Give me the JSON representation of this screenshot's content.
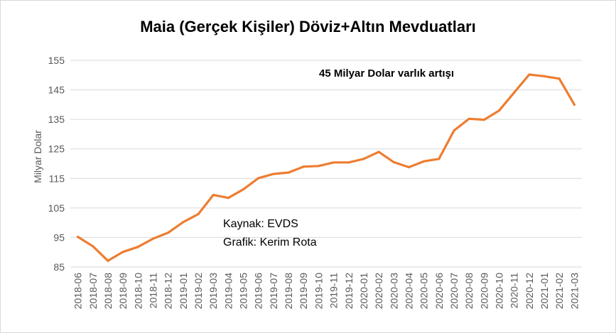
{
  "chart_data": {
    "type": "line",
    "title": "Maia (Gerçek Kişiler) Döviz+Altın Mevduatları",
    "ylabel": "Milyar Dolar",
    "xlabel": "",
    "ylim": [
      85,
      155
    ],
    "yticks": [
      85,
      95,
      105,
      115,
      125,
      135,
      145,
      155
    ],
    "grid": true,
    "legend": "none",
    "categories": [
      "2018-06",
      "2018-07",
      "2018-08",
      "2018-09",
      "2018-10",
      "2018-11",
      "2018-12",
      "2019-01",
      "2019-02",
      "2019-03",
      "2019-04",
      "2019-05",
      "2019-06",
      "2019-07",
      "2019-08",
      "2019-09",
      "2019-10",
      "2019-11",
      "2019-12",
      "2020-01",
      "2020-02",
      "2020-03",
      "2020-04",
      "2020-05",
      "2020-06",
      "2020-07",
      "2020-08",
      "2020-09",
      "2020-10",
      "2020-11",
      "2020-12",
      "2021-01",
      "2021-02",
      "2021-03"
    ],
    "series": [
      {
        "color": "#ed7d31",
        "values": [
          95.2,
          92.0,
          87.1,
          90.1,
          91.8,
          94.6,
          96.6,
          100.2,
          102.9,
          109.4,
          108.4,
          111.3,
          115.1,
          116.5,
          117.0,
          119.0,
          119.2,
          120.4,
          120.4,
          121.6,
          124.0,
          120.5,
          118.8,
          120.8,
          121.6,
          131.2,
          135.2,
          134.9,
          138.0,
          144.1,
          150.2,
          149.6,
          148.8,
          140.0
        ]
      }
    ],
    "annotations": {
      "increase": "45 Milyar  Dolar varlık artışı",
      "source": "Kaynak: EVDS",
      "author": "Grafik: Kerim Rota"
    }
  }
}
